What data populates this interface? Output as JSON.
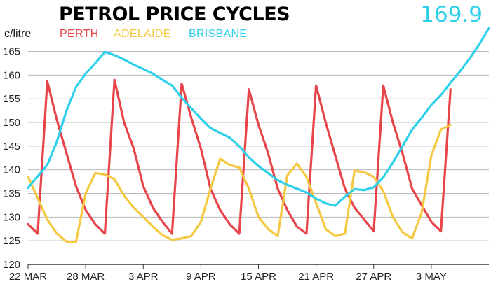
{
  "chart_data": {
    "type": "line",
    "title": "PETROL PRICE CYCLES",
    "ylabel": "c/litre",
    "ylim": [
      120,
      167
    ],
    "yticks": [
      120,
      125,
      130,
      135,
      140,
      145,
      150,
      155,
      160,
      165
    ],
    "xticks": [
      "22 MAR",
      "28 MAR",
      "3 APR",
      "9 APR",
      "15 APR",
      "21 APR",
      "27 APR",
      "3 MAY"
    ],
    "xticks_day": [
      0,
      6,
      12,
      18,
      24,
      30,
      36,
      42
    ],
    "xlim_day": [
      0,
      48
    ],
    "grid": true,
    "legend": "top-left",
    "latest_value": "169.9",
    "series": [
      {
        "name": "PERTH",
        "color": "#e8454a",
        "x": [
          0,
          1,
          2,
          3,
          4,
          5,
          6,
          7,
          8,
          9,
          10,
          11,
          12,
          13,
          14,
          15,
          16,
          17,
          18,
          19,
          20,
          21,
          22,
          23,
          24,
          25,
          26,
          27,
          28,
          29,
          30,
          31,
          32,
          33,
          34,
          35,
          36,
          37,
          38,
          39,
          40,
          41,
          42,
          43,
          44
        ],
        "values": [
          128.5,
          126.5,
          158.7,
          150.5,
          143.5,
          136.5,
          131.5,
          128.5,
          126.5,
          159.0,
          150.0,
          144.5,
          136.5,
          132.0,
          129.0,
          126.5,
          158.2,
          151.0,
          144.5,
          136.0,
          131.5,
          128.5,
          126.5,
          157.0,
          149.5,
          143.5,
          136.0,
          131.5,
          128.0,
          126.5,
          157.8,
          150.0,
          143.0,
          136.0,
          132.0,
          129.5,
          127.0,
          157.8,
          150.0,
          143.5,
          136.0,
          132.5,
          129.0,
          127.0,
          157.0
        ]
      },
      {
        "name": "ADELAIDE",
        "color": "#f5c842",
        "x": [
          0,
          1,
          2,
          3,
          4,
          5,
          6,
          7,
          8,
          9,
          10,
          11,
          12,
          13,
          14,
          15,
          16,
          17,
          18,
          19,
          20,
          21,
          22,
          23,
          24,
          25,
          26,
          27,
          28,
          29,
          30,
          31,
          32,
          33,
          34,
          35,
          36,
          37,
          38,
          39,
          40,
          41,
          42,
          43,
          44
        ],
        "values": [
          138.5,
          134.0,
          129.5,
          126.5,
          124.8,
          124.8,
          135.0,
          139.3,
          139.0,
          138.0,
          134.5,
          132.0,
          130.0,
          128.0,
          126.2,
          125.2,
          125.5,
          126.0,
          129.0,
          136.0,
          142.3,
          141.0,
          140.5,
          136.0,
          130.0,
          127.5,
          126.0,
          138.8,
          141.3,
          138.5,
          133.0,
          127.5,
          126.0,
          126.5,
          139.8,
          139.5,
          138.5,
          135.5,
          130.0,
          126.8,
          125.5,
          131.0,
          143.0,
          148.5,
          149.5
        ]
      },
      {
        "name": "BRISBANE",
        "color": "#2fd0ea",
        "x": [
          0,
          1,
          2,
          3,
          4,
          5,
          6,
          7,
          8,
          9,
          10,
          11,
          12,
          13,
          14,
          15,
          16,
          17,
          18,
          19,
          20,
          21,
          22,
          23,
          24,
          25,
          26,
          27,
          28,
          29,
          30,
          31,
          32,
          33,
          34,
          35,
          36,
          37,
          38,
          39,
          40,
          41,
          42,
          43,
          44,
          45,
          46,
          47,
          48
        ],
        "values": [
          136.2,
          138.6,
          141.0,
          146.0,
          152.5,
          157.5,
          160.3,
          162.5,
          164.9,
          164.2,
          163.3,
          162.2,
          161.3,
          160.3,
          159.0,
          157.8,
          155.2,
          153.0,
          150.8,
          148.8,
          147.8,
          146.8,
          145.0,
          142.6,
          140.8,
          139.3,
          137.8,
          136.8,
          136.0,
          135.2,
          133.9,
          132.9,
          132.4,
          134.3,
          135.9,
          135.7,
          136.3,
          138.4,
          141.5,
          145.0,
          148.5,
          151.0,
          153.7,
          155.8,
          158.4,
          160.8,
          163.5,
          166.5,
          169.9
        ]
      }
    ]
  }
}
